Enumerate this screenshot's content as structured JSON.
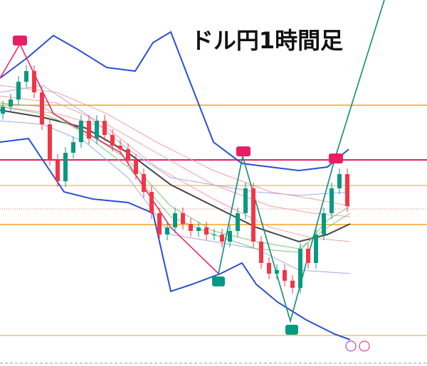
{
  "chart_data": {
    "type": "candlestick",
    "title": "ドル円1時間足",
    "open": [
      355,
      365,
      375,
      400,
      415,
      385,
      340,
      290,
      260,
      300,
      315,
      345,
      320,
      345,
      325,
      310,
      305,
      290,
      270,
      245,
      215,
      185,
      195,
      215,
      200,
      190,
      195,
      185,
      185,
      175,
      190,
      215,
      250,
      175,
      145,
      130,
      135,
      120,
      110,
      165,
      145,
      185,
      215,
      250,
      270
    ],
    "high": [
      373,
      383,
      408,
      423,
      423,
      393,
      348,
      298,
      308,
      323,
      353,
      353,
      353,
      353,
      333,
      318,
      313,
      298,
      278,
      253,
      223,
      203,
      223,
      223,
      208,
      203,
      203,
      193,
      193,
      198,
      223,
      258,
      258,
      183,
      153,
      143,
      143,
      128,
      173,
      173,
      193,
      223,
      258,
      278,
      278
    ],
    "low": [
      347,
      357,
      367,
      392,
      377,
      332,
      282,
      252,
      252,
      292,
      307,
      312,
      312,
      317,
      302,
      297,
      282,
      262,
      237,
      207,
      177,
      177,
      187,
      192,
      182,
      182,
      177,
      177,
      167,
      167,
      182,
      207,
      167,
      137,
      122,
      122,
      112,
      102,
      102,
      137,
      137,
      177,
      207,
      242,
      217
    ],
    "close": [
      365,
      375,
      400,
      415,
      385,
      340,
      290,
      260,
      300,
      315,
      345,
      320,
      345,
      325,
      310,
      305,
      290,
      270,
      245,
      215,
      185,
      195,
      215,
      200,
      190,
      195,
      185,
      185,
      175,
      190,
      215,
      250,
      175,
      145,
      130,
      135,
      120,
      110,
      165,
      145,
      185,
      215,
      250,
      270,
      225
    ],
    "up_color": "#089981",
    "down_color": "#f23645",
    "ylim": [
      0,
      515
    ]
  }
}
